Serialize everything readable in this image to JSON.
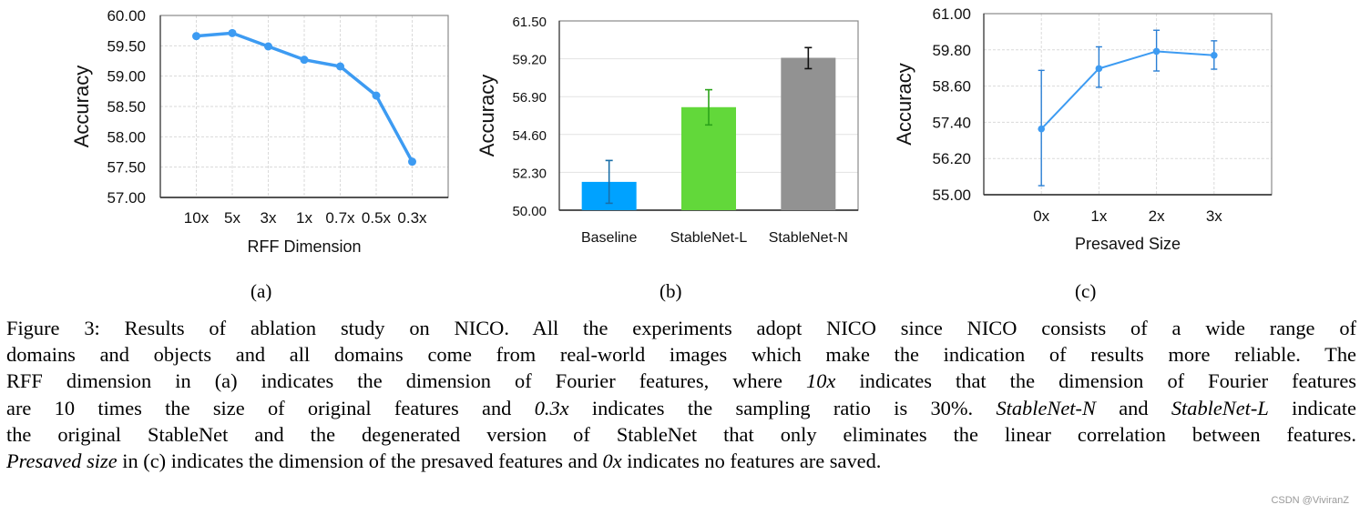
{
  "figure": {
    "sublabels": [
      "(a)",
      "(b)",
      "(c)"
    ],
    "caption_lines": [
      [
        "Figure 3:  Results of ablation study on NICO. All the experiments adopt NICO since NICO consists of a wide range of"
      ],
      [
        "domains and objects and all domains come from real-world images which make the indication of results more reliable. The"
      ],
      [
        "RFF dimension in (a) indicates the dimension of Fourier features, where ",
        {
          "i": "10x"
        },
        " indicates that the dimension of Fourier features"
      ],
      [
        "are 10 times the size of original features and ",
        {
          "i": "0.3x"
        },
        " indicates the sampling ratio is 30%. ",
        {
          "i": "StableNet-N"
        },
        " and ",
        {
          "i": "StableNet-L"
        },
        " indicate"
      ],
      [
        "the original StableNet and the degenerated version of StableNet that only eliminates the linear correlation between features."
      ],
      [
        {
          "i": "Presaved size"
        },
        " in (c) indicates the dimension of the presaved features and ",
        {
          "i": "0x"
        },
        " indicates no features are saved."
      ]
    ],
    "watermark": "CSDN @ViviranZ"
  },
  "chart_data": [
    {
      "id": "a",
      "type": "line",
      "title": "",
      "xlabel": "RFF Dimension",
      "ylabel": "Accuracy",
      "categories": [
        "10x",
        "5x",
        "3x",
        "1x",
        "0.7x",
        "0.5x",
        "0.3x"
      ],
      "values": [
        59.66,
        59.71,
        59.49,
        59.27,
        59.16,
        58.68,
        57.59
      ],
      "ylim": [
        57.0,
        60.0
      ],
      "yticks": [
        "57.00",
        "57.50",
        "58.00",
        "58.50",
        "59.00",
        "59.50",
        "60.00"
      ],
      "grid": true,
      "color": "#3D9BF2"
    },
    {
      "id": "b",
      "type": "bar",
      "title": "",
      "xlabel": "",
      "ylabel": "Accuracy",
      "categories": [
        "Baseline",
        "StableNet-L",
        "StableNet-N"
      ],
      "values": [
        51.72,
        56.26,
        59.26
      ],
      "error_low": [
        50.42,
        55.18,
        58.6
      ],
      "error_high": [
        53.02,
        57.32,
        59.88
      ],
      "ylim": [
        50.0,
        61.5
      ],
      "yticks": [
        "50.00",
        "52.30",
        "54.60",
        "56.90",
        "59.20",
        "61.50"
      ],
      "grid": true,
      "colors": [
        "#00A2FF",
        "#62D83A",
        "#929292"
      ],
      "error_colors": [
        "#1A6FA8",
        "#2BA31A",
        "#111111"
      ]
    },
    {
      "id": "c",
      "type": "line",
      "title": "",
      "xlabel": "Presaved Size",
      "ylabel": "Accuracy",
      "categories": [
        "0x",
        "1x",
        "2x",
        "3x"
      ],
      "values": [
        57.18,
        59.18,
        59.75,
        59.62
      ],
      "error_low": [
        55.3,
        58.56,
        59.1,
        59.16
      ],
      "error_high": [
        59.12,
        59.9,
        60.45,
        60.1
      ],
      "ylim": [
        55.0,
        61.0
      ],
      "yticks": [
        "55.00",
        "56.20",
        "57.40",
        "58.60",
        "59.80",
        "61.00"
      ],
      "grid": true,
      "color": "#3D9BF2",
      "error_color": "#2A7FD4"
    }
  ]
}
